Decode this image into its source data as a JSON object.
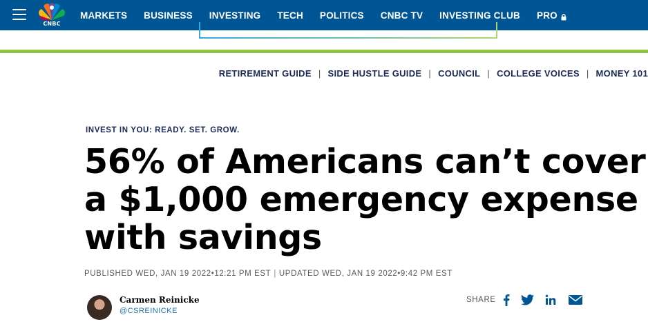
{
  "nav": {
    "logo_text": "CNBC",
    "links": [
      "MARKETS",
      "BUSINESS",
      "INVESTING",
      "TECH",
      "POLITICS",
      "CNBC TV",
      "INVESTING CLUB",
      "PRO"
    ]
  },
  "subnav": {
    "items": [
      "RETIREMENT GUIDE",
      "SIDE HUSTLE GUIDE",
      "COUNCIL",
      "COLLEGE VOICES",
      "MONEY 101"
    ],
    "separator": "|"
  },
  "article": {
    "kicker": "INVEST IN YOU: READY. SET. GROW.",
    "headline": "56% of Americans can’t cover a $1,000 emergency expense with savings",
    "published": "PUBLISHED WED, JAN 19 2022•12:21 PM EST",
    "updated": "UPDATED WED, JAN 19 2022•9:42 PM EST"
  },
  "author": {
    "name": "Carmen Reinicke",
    "handle": "@CSREINICKE"
  },
  "share": {
    "label": "SHARE",
    "icons": [
      "facebook-icon",
      "twitter-icon",
      "linkedin-icon",
      "email-icon"
    ]
  },
  "colors": {
    "nav_bg": "#005594",
    "accent_green": "#8cc63f",
    "kicker_navy": "#1c2a5a",
    "link_blue": "#1a6fb0"
  }
}
